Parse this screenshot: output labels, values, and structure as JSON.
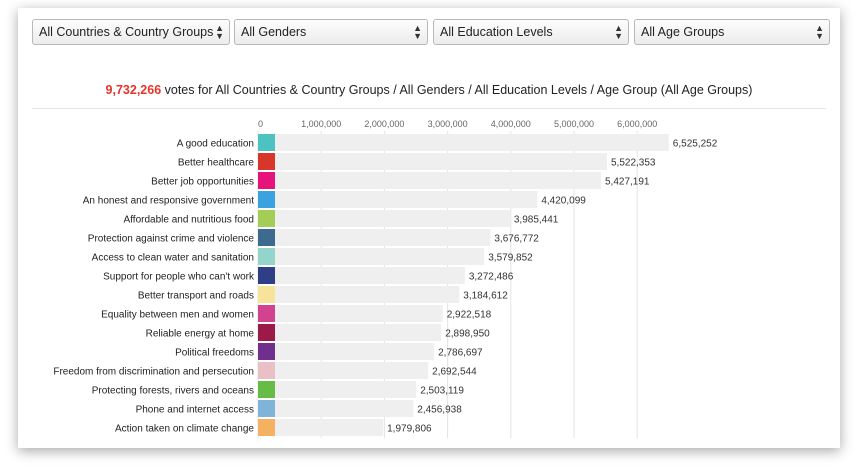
{
  "filters": [
    {
      "name": "country-select",
      "value": "All Countries & Country Groups"
    },
    {
      "name": "gender-select",
      "value": "All Genders"
    },
    {
      "name": "education-select",
      "value": "All Education Levels"
    },
    {
      "name": "age-select",
      "value": "All Age Groups"
    }
  ],
  "headline": {
    "count": "9,732,266",
    "text": " votes for All Countries & Country Groups / All Genders / All Education Levels / Age Group (All Age Groups)"
  },
  "chart_data": {
    "type": "bar",
    "orientation": "horizontal",
    "x_ticks": [
      "0",
      "1,000,000",
      "2,000,000",
      "3,000,000",
      "4,000,000",
      "5,000,000",
      "6,000,000"
    ],
    "xlim": [
      0,
      6500000
    ],
    "grid": true,
    "bars": [
      {
        "label": "A good education",
        "value": 6525252,
        "value_label": "6,525,252",
        "color": "#4cc3c1"
      },
      {
        "label": "Better healthcare",
        "value": 5522353,
        "value_label": "5,522,353",
        "color": "#d8352b"
      },
      {
        "label": "Better job opportunities",
        "value": 5427191,
        "value_label": "5,427,191",
        "color": "#e6137a"
      },
      {
        "label": "An honest and responsive government",
        "value": 4420099,
        "value_label": "4,420,099",
        "color": "#3aa3df"
      },
      {
        "label": "Affordable and nutritious food",
        "value": 3985441,
        "value_label": "3,985,441",
        "color": "#a4cd57"
      },
      {
        "label": "Protection against crime and violence",
        "value": 3676772,
        "value_label": "3,676,772",
        "color": "#3d6b8f"
      },
      {
        "label": "Access to clean water and sanitation",
        "value": 3579852,
        "value_label": "3,579,852",
        "color": "#93d5cb"
      },
      {
        "label": "Support for people who can't work",
        "value": 3272486,
        "value_label": "3,272,486",
        "color": "#2e3e87"
      },
      {
        "label": "Better transport and roads",
        "value": 3184612,
        "value_label": "3,184,612",
        "color": "#f7e39a"
      },
      {
        "label": "Equality between men and women",
        "value": 2922518,
        "value_label": "2,922,518",
        "color": "#d1438e"
      },
      {
        "label": "Reliable energy at home",
        "value": 2898950,
        "value_label": "2,898,950",
        "color": "#9c1a48"
      },
      {
        "label": "Political freedoms",
        "value": 2786697,
        "value_label": "2,786,697",
        "color": "#6f2f8d"
      },
      {
        "label": "Freedom from discrimination and persecution",
        "value": 2692544,
        "value_label": "2,692,544",
        "color": "#e8c0c6"
      },
      {
        "label": "Protecting forests, rivers and oceans",
        "value": 2503119,
        "value_label": "2,503,119",
        "color": "#67bb47"
      },
      {
        "label": "Phone and internet access",
        "value": 2456938,
        "value_label": "2,456,938",
        "color": "#7fb3d8"
      },
      {
        "label": "Action taken on climate change",
        "value": 1979806,
        "value_label": "1,979,806",
        "color": "#f5b162"
      }
    ]
  }
}
